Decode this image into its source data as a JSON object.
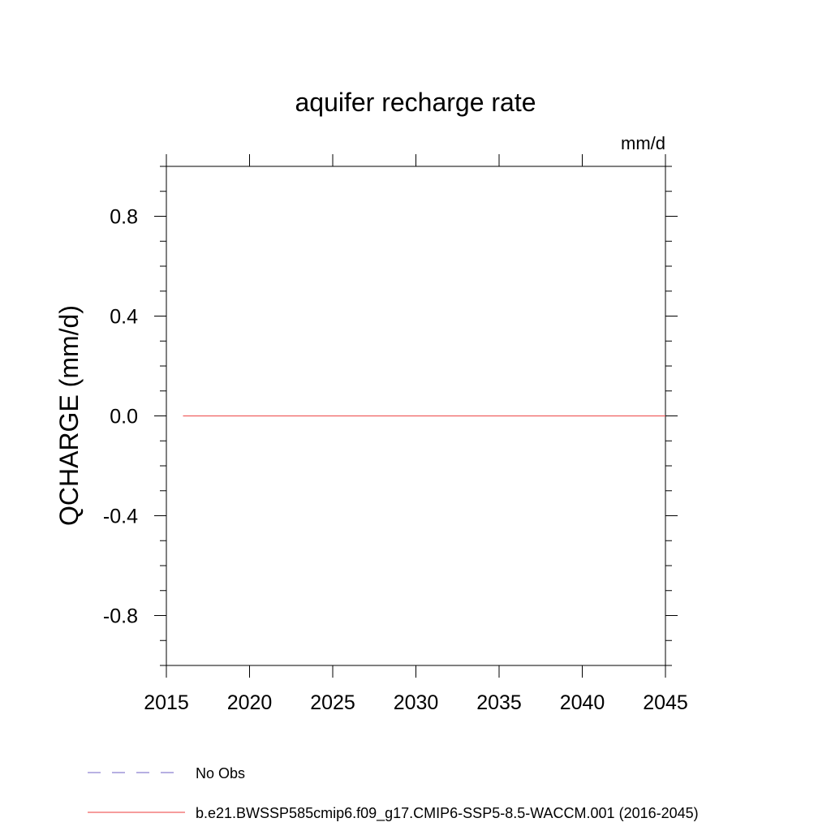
{
  "chart_data": {
    "type": "line",
    "title": "aquifer recharge rate",
    "units": "mm/d",
    "xlabel": "",
    "ylabel": "QCHARGE  (mm/d)",
    "xlim": [
      2015,
      2045
    ],
    "ylim": [
      -1.0,
      1.0
    ],
    "x_ticks": [
      2015,
      2020,
      2025,
      2030,
      2035,
      2040,
      2045
    ],
    "x_tick_labels": [
      "2015",
      "2020",
      "2025",
      "2030",
      "2035",
      "2040",
      "2045"
    ],
    "y_ticks": [
      -0.8,
      -0.4,
      0.0,
      0.4,
      0.8
    ],
    "y_tick_labels": [
      "-0.8",
      "-0.4",
      "0.0",
      "0.4",
      "0.8"
    ],
    "grid": false,
    "legend_position": "bottom",
    "series": [
      {
        "name": "No Obs",
        "color": "#8a7fd0",
        "style": "dashed",
        "x": [],
        "y": []
      },
      {
        "name": "b.e21.BWSSP585cmip6.f09_g17.CMIP6-SSP5-8.5-WACCM.001 (2016-2045)",
        "color": "#f06060",
        "style": "solid",
        "x": [
          2016,
          2045
        ],
        "y": [
          0.0,
          0.0
        ]
      }
    ]
  }
}
